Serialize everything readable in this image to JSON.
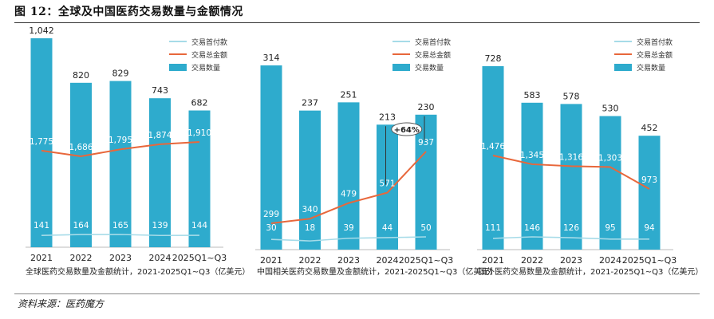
{
  "figure": {
    "title": "图 12：全球及中国医药交易数量与金额情况",
    "source": "资料来源：医药魔方"
  },
  "colors": {
    "bar": "#2eabcd",
    "amount_line": "#e8673b",
    "payment_line": "#a6dbe8",
    "label": "#222222",
    "bar_label_light": "#ffffff"
  },
  "legend_labels": [
    "交易首付款",
    "交易总金额",
    "交易数量"
  ],
  "chart_data": [
    {
      "type": "bar",
      "panel": "global",
      "title": "",
      "caption": "全球医药交易数量及金额统计，2021-2025Q1~Q3（亿美元）",
      "categories": [
        "2021",
        "2022",
        "2023",
        "2024",
        "2025Q1~Q3"
      ],
      "series": [
        {
          "name": "交易数量",
          "kind": "bar",
          "values": [
            1042,
            820,
            829,
            743,
            682
          ],
          "labels": [
            "1,042",
            "820",
            "829",
            "743",
            "682"
          ]
        },
        {
          "name": "交易总金额",
          "kind": "line",
          "values": [
            1775,
            1686,
            1795,
            1874,
            1910
          ],
          "labels": [
            "1,775",
            "1,686",
            "1,795",
            "1,874",
            "1,910"
          ]
        },
        {
          "name": "交易首付款",
          "kind": "line",
          "values": [
            141,
            164,
            165,
            139,
            144
          ],
          "labels": [
            "141",
            "164",
            "165",
            "139",
            "144"
          ]
        }
      ]
    },
    {
      "type": "bar",
      "panel": "china",
      "title": "",
      "caption": "中国相关医药交易数量及金额统计，2021-2025Q1~Q3（亿美元）",
      "categories": [
        "2021",
        "2022",
        "2023",
        "2024",
        "2025Q1~Q3"
      ],
      "annotation": "+64%",
      "series": [
        {
          "name": "交易数量",
          "kind": "bar",
          "values": [
            314,
            237,
            251,
            213,
            230
          ],
          "labels": [
            "314",
            "237",
            "251",
            "213",
            "230"
          ]
        },
        {
          "name": "交易总金额",
          "kind": "line",
          "values": [
            299,
            340,
            479,
            571,
            937
          ],
          "labels": [
            "299",
            "340",
            "479",
            "571",
            "937"
          ]
        },
        {
          "name": "交易首付款",
          "kind": "line",
          "values": [
            30,
            18,
            39,
            44,
            50
          ],
          "labels": [
            "30",
            "18",
            "39",
            "44",
            "50"
          ]
        }
      ]
    },
    {
      "type": "bar",
      "panel": "foreign",
      "title": "",
      "caption": "国外医药交易数量及金额统计，2021-2025Q1~Q3（亿美元）",
      "categories": [
        "2021",
        "2022",
        "2023",
        "2024",
        "2025Q1~Q3"
      ],
      "series": [
        {
          "name": "交易数量",
          "kind": "bar",
          "values": [
            728,
            583,
            578,
            530,
            452
          ],
          "labels": [
            "728",
            "583",
            "578",
            "530",
            "452"
          ]
        },
        {
          "name": "交易总金额",
          "kind": "line",
          "values": [
            1476,
            1345,
            1316,
            1303,
            973
          ],
          "labels": [
            "1,476",
            "1,345",
            "1,316",
            "1,303",
            "973"
          ]
        },
        {
          "name": "交易首付款",
          "kind": "line",
          "values": [
            111,
            146,
            126,
            95,
            94
          ],
          "labels": [
            "111",
            "146",
            "126",
            "95",
            "94"
          ]
        }
      ]
    }
  ]
}
